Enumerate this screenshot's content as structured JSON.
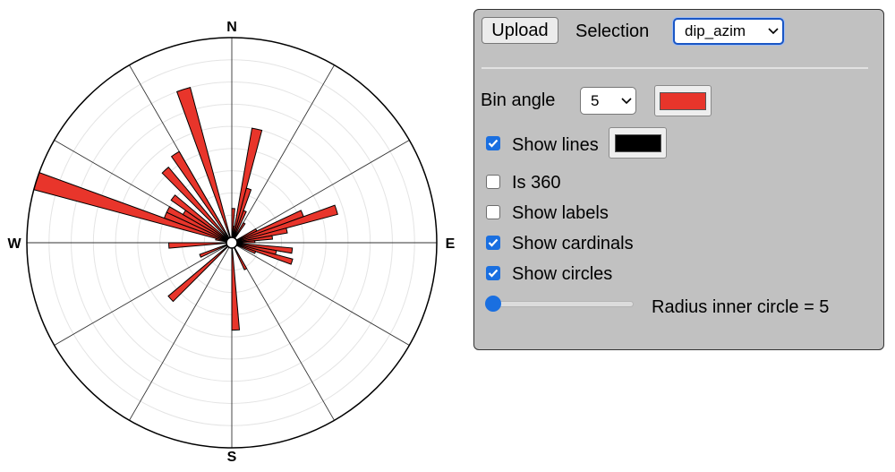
{
  "chart_data": {
    "type": "rose",
    "bin_angle_deg": 5,
    "direction_convention": "clockwise from North",
    "bar_fill": "#e8352b",
    "bar_stroke": "#000000",
    "max_count": 9,
    "inner_radius_value": 5,
    "grid": "concentric circles",
    "cardinals": [
      "N",
      "E",
      "S",
      "W"
    ],
    "bins": [
      {
        "start": 0,
        "end": 5,
        "count": 1.3
      },
      {
        "start": 5,
        "end": 10,
        "count": 0.5
      },
      {
        "start": 10,
        "end": 15,
        "count": 5.0
      },
      {
        "start": 15,
        "end": 20,
        "count": 2.3
      },
      {
        "start": 20,
        "end": 25,
        "count": 1.3
      },
      {
        "start": 30,
        "end": 35,
        "count": 0.8
      },
      {
        "start": 60,
        "end": 65,
        "count": 1.0
      },
      {
        "start": 65,
        "end": 70,
        "count": 3.2
      },
      {
        "start": 70,
        "end": 75,
        "count": 4.7
      },
      {
        "start": 75,
        "end": 80,
        "count": 2.3
      },
      {
        "start": 80,
        "end": 85,
        "count": 1.6
      },
      {
        "start": 85,
        "end": 90,
        "count": 0.8
      },
      {
        "start": 95,
        "end": 100,
        "count": 2.5
      },
      {
        "start": 100,
        "end": 105,
        "count": 1.8
      },
      {
        "start": 105,
        "end": 110,
        "count": 2.6
      },
      {
        "start": 110,
        "end": 115,
        "count": 0.9
      },
      {
        "start": 150,
        "end": 155,
        "count": 1.1
      },
      {
        "start": 175,
        "end": 180,
        "count": 3.7
      },
      {
        "start": 225,
        "end": 230,
        "count": 3.5
      },
      {
        "start": 245,
        "end": 250,
        "count": 1.3
      },
      {
        "start": 265,
        "end": 270,
        "count": 2.6
      },
      {
        "start": 280,
        "end": 285,
        "count": 0.5
      },
      {
        "start": 285,
        "end": 290,
        "count": 9.0
      },
      {
        "start": 290,
        "end": 295,
        "count": 3.0
      },
      {
        "start": 295,
        "end": 300,
        "count": 3.0
      },
      {
        "start": 300,
        "end": 305,
        "count": 2.3
      },
      {
        "start": 305,
        "end": 310,
        "count": 3.1
      },
      {
        "start": 315,
        "end": 320,
        "count": 4.2
      },
      {
        "start": 325,
        "end": 330,
        "count": 4.5
      },
      {
        "start": 340,
        "end": 345,
        "count": 7.0
      }
    ]
  },
  "controls": {
    "upload_label": "Upload",
    "selection_label": "Selection",
    "selection_value": "dip_azim",
    "bin_angle_label": "Bin angle",
    "bin_angle_value": "5",
    "bin_color": "#e8352b",
    "line_color": "#000000",
    "checkboxes": [
      {
        "label": "Show lines",
        "checked": true
      },
      {
        "label": "Is 360",
        "checked": false
      },
      {
        "label": "Show labels",
        "checked": false
      },
      {
        "label": "Show cardinals",
        "checked": true
      },
      {
        "label": "Show circles",
        "checked": true
      }
    ],
    "slider_value": 5,
    "radius_text": "Radius inner circle = 5"
  }
}
